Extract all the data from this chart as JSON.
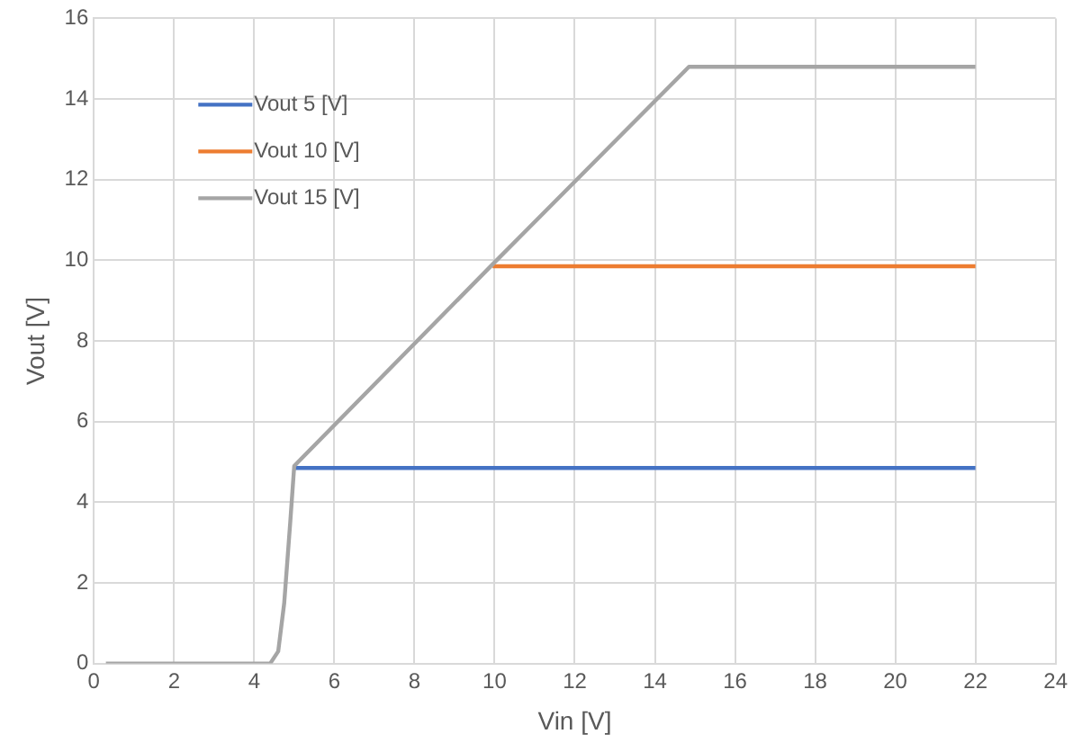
{
  "chart_data": {
    "type": "line",
    "xlabel": "Vin [V]",
    "ylabel": "Vout [V]",
    "xlim": [
      0,
      24
    ],
    "xticks": [
      0,
      2,
      4,
      6,
      8,
      10,
      12,
      14,
      16,
      18,
      20,
      22,
      24
    ],
    "ylim": [
      0,
      16
    ],
    "yticks": [
      0,
      2,
      4,
      6,
      8,
      10,
      12,
      14,
      16
    ],
    "grid": true,
    "legend": "top left",
    "marker": "none",
    "line_style": "solid",
    "series": [
      {
        "name": "Vout 5 [V]",
        "color": "#4472c4",
        "x": [
          5.0,
          6.0,
          22
        ],
        "values": [
          4.85,
          4.85,
          4.85
        ]
      },
      {
        "name": "Vout 10 [V]",
        "color": "#ed7d31",
        "x": [
          9.95,
          22
        ],
        "values": [
          9.85,
          9.85
        ]
      },
      {
        "name": "Vout 15 [V]",
        "color": "#a5a5a5",
        "x": [
          0.3,
          4.4,
          4.6,
          4.75,
          4.9,
          5.0,
          10,
          14.85,
          22
        ],
        "values": [
          0,
          0,
          0.3,
          1.5,
          3.5,
          4.9,
          9.95,
          14.8,
          14.8
        ]
      }
    ]
  }
}
